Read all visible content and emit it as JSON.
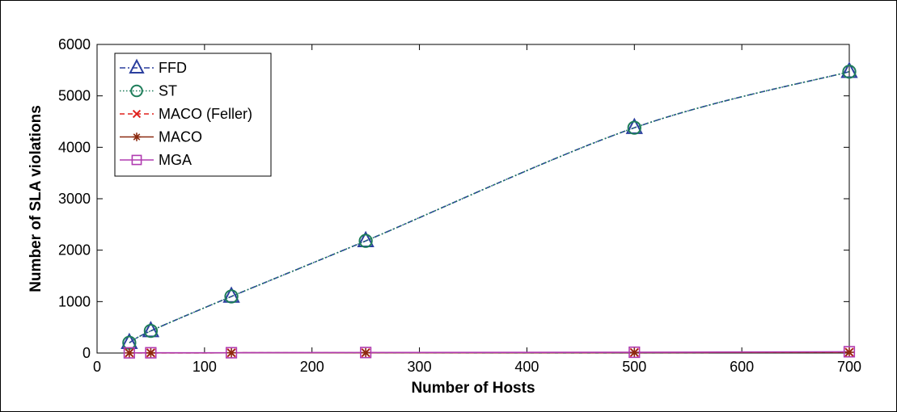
{
  "chart_data": {
    "type": "line",
    "title": "",
    "xlabel": "Number of Hosts",
    "ylabel": "Number of SLA violations",
    "xlim": [
      0,
      700
    ],
    "ylim": [
      0,
      6000
    ],
    "xticks": [
      0,
      100,
      200,
      300,
      400,
      500,
      600,
      700
    ],
    "yticks": [
      0,
      1000,
      2000,
      3000,
      4000,
      5000,
      6000
    ],
    "grid": false,
    "legend_position": "top-left",
    "x": [
      30,
      50,
      125,
      250,
      500,
      700
    ],
    "series": [
      {
        "name": "FFD",
        "values": [
          200,
          430,
          1100,
          2180,
          4380,
          5470
        ],
        "color": "#2b3f9e",
        "dash": "dash-dot",
        "marker": "triangle"
      },
      {
        "name": "ST",
        "values": [
          200,
          430,
          1100,
          2180,
          4380,
          5470
        ],
        "color": "#1e7d5a",
        "dash": "dotted",
        "marker": "circle"
      },
      {
        "name": "MACO (Feller)",
        "values": [
          2,
          3,
          4,
          6,
          10,
          15
        ],
        "color": "#e0201c",
        "dash": "dashed",
        "marker": "x"
      },
      {
        "name": "MACO",
        "values": [
          2,
          3,
          4,
          6,
          10,
          15
        ],
        "color": "#8b2a10",
        "dash": "solid",
        "marker": "star"
      },
      {
        "name": "MGA",
        "values": [
          4,
          5,
          6,
          10,
          15,
          25
        ],
        "color": "#b03bb0",
        "dash": "solid",
        "marker": "square"
      }
    ]
  }
}
